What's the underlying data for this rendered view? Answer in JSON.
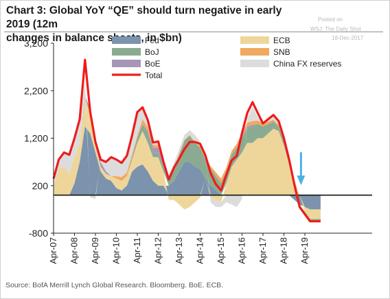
{
  "header": {
    "title_line1": "Chart 3: Global YoY “QE” should turn negative in early 2019 (12m",
    "title_line2": "changes in balance sheets, in $bn)",
    "posted": "Posted on",
    "wsj": "WSJ: The Daily Shot",
    "date": "18-Dec-2017"
  },
  "footer": {
    "source": "Source: BofA Merrill Lynch Global Research. Bloomberg. BoE. ECB."
  },
  "colors": {
    "fed": "#7b93ad",
    "boj": "#8aab91",
    "boe": "#a796b8",
    "ecb": "#eed69a",
    "snb": "#f0a95f",
    "china_fx": "#dcdcdc",
    "total": "#ee1c1c",
    "arrow": "#4cb2e6"
  },
  "chart_data": {
    "type": "area",
    "x_unit": "date (year, month)",
    "y_unit": "$bn",
    "ylim": [
      -800,
      3200
    ],
    "yticks": [
      3200,
      2200,
      1200,
      200,
      -800
    ],
    "ytick_labels": [
      "3,200",
      "2,200",
      "1,200",
      "200",
      "-800"
    ],
    "xticks": [
      "Apr-07",
      "Apr-08",
      "Apr-09",
      "Apr-10",
      "Apr-11",
      "Apr-12",
      "Apr-13",
      "Apr-14",
      "Apr-15",
      "Apr-16",
      "Apr-17",
      "Apr-18",
      "Apr-19"
    ],
    "grid": false,
    "zero_line": 0,
    "annotation": "downward arrow near Jan-2019",
    "legend": [
      {
        "key": "fed",
        "label": "Fed"
      },
      {
        "key": "ecb",
        "label": "ECB"
      },
      {
        "key": "boj",
        "label": "BoJ"
      },
      {
        "key": "snb",
        "label": "SNB"
      },
      {
        "key": "boe",
        "label": "BoE"
      },
      {
        "key": "china_fx",
        "label": "China FX reserves"
      },
      {
        "key": "total",
        "label": "Total"
      }
    ],
    "x": [
      "Apr-07",
      "Jul-07",
      "Oct-07",
      "Jan-08",
      "Apr-08",
      "Jul-08",
      "Oct-08",
      "Jan-09",
      "Apr-09",
      "Jul-09",
      "Oct-09",
      "Jan-10",
      "Apr-10",
      "Jul-10",
      "Oct-10",
      "Jan-11",
      "Apr-11",
      "Jul-11",
      "Oct-11",
      "Jan-12",
      "Apr-12",
      "Jul-12",
      "Oct-12",
      "Jan-13",
      "Apr-13",
      "Jul-13",
      "Oct-13",
      "Jan-14",
      "Apr-14",
      "Jul-14",
      "Oct-14",
      "Jan-15",
      "Apr-15",
      "Jul-15",
      "Oct-15",
      "Jan-16",
      "Apr-16",
      "Jul-16",
      "Oct-16",
      "Jan-17",
      "Apr-17",
      "Jul-17",
      "Oct-17",
      "Jan-18",
      "Apr-18",
      "Jul-18",
      "Oct-18",
      "Jan-19",
      "Apr-19",
      "Jul-19",
      "Oct-19",
      "Jan-20"
    ],
    "series": [
      {
        "key": "fed",
        "values": [
          0,
          0,
          0,
          0,
          250,
          700,
          1450,
          1300,
          900,
          500,
          350,
          300,
          150,
          100,
          200,
          500,
          600,
          650,
          500,
          300,
          200,
          200,
          200,
          300,
          500,
          700,
          700,
          600,
          550,
          350,
          200,
          100,
          0,
          0,
          0,
          0,
          0,
          0,
          0,
          0,
          0,
          0,
          0,
          0,
          0,
          0,
          -100,
          -200,
          -250,
          -300,
          -300,
          -300
        ]
      },
      {
        "key": "ecb",
        "values": [
          200,
          550,
          600,
          450,
          550,
          400,
          600,
          400,
          150,
          100,
          100,
          100,
          200,
          200,
          200,
          250,
          500,
          700,
          600,
          500,
          600,
          300,
          -100,
          -100,
          -200,
          -300,
          -250,
          -150,
          -50,
          0,
          -50,
          -100,
          -150,
          250,
          600,
          750,
          900,
          1100,
          1100,
          1200,
          1200,
          1300,
          1400,
          1350,
          1050,
          650,
          300,
          0,
          -100,
          -200,
          -200,
          -200
        ]
      },
      {
        "key": "boj",
        "values": [
          0,
          0,
          0,
          0,
          0,
          0,
          0,
          0,
          0,
          0,
          0,
          0,
          0,
          0,
          0,
          50,
          100,
          150,
          200,
          100,
          100,
          100,
          150,
          250,
          350,
          450,
          550,
          500,
          450,
          400,
          350,
          300,
          250,
          250,
          250,
          250,
          300,
          300,
          350,
          300,
          250,
          200,
          150,
          100,
          80,
          50,
          0,
          -50,
          -50,
          -50,
          -50,
          -50
        ]
      },
      {
        "key": "boe",
        "values": [
          0,
          0,
          0,
          0,
          0,
          0,
          50,
          100,
          150,
          100,
          50,
          0,
          0,
          0,
          0,
          0,
          0,
          0,
          50,
          100,
          100,
          50,
          0,
          0,
          0,
          0,
          0,
          0,
          0,
          0,
          0,
          0,
          0,
          0,
          0,
          0,
          30,
          50,
          30,
          0,
          0,
          0,
          0,
          0,
          0,
          0,
          0,
          0,
          0,
          0,
          0,
          0
        ]
      },
      {
        "key": "snb",
        "values": [
          0,
          0,
          0,
          0,
          0,
          0,
          0,
          0,
          0,
          0,
          0,
          0,
          50,
          80,
          80,
          60,
          50,
          100,
          80,
          60,
          50,
          50,
          30,
          30,
          20,
          20,
          20,
          20,
          30,
          40,
          60,
          80,
          100,
          80,
          80,
          80,
          80,
          80,
          80,
          70,
          60,
          50,
          40,
          30,
          20,
          20,
          10,
          0,
          0,
          0,
          0,
          0
        ]
      },
      {
        "key": "china_fx",
        "values": [
          150,
          200,
          300,
          400,
          400,
          500,
          300,
          -50,
          -80,
          50,
          200,
          400,
          350,
          300,
          350,
          400,
          500,
          250,
          150,
          50,
          80,
          0,
          50,
          100,
          100,
          100,
          100,
          150,
          100,
          50,
          -100,
          -150,
          -100,
          -150,
          -200,
          -250,
          -80,
          100,
          300,
          80,
          0,
          50,
          100,
          80,
          50,
          30,
          10,
          0,
          0,
          0,
          0,
          0
        ]
      },
      {
        "key": "total",
        "values": [
          350,
          750,
          900,
          850,
          1200,
          1600,
          2850,
          1750,
          1120,
          750,
          700,
          800,
          750,
          680,
          830,
          1260,
          1750,
          1850,
          1580,
          1110,
          1130,
          700,
          330,
          580,
          770,
          970,
          1120,
          1120,
          1080,
          840,
          460,
          230,
          100,
          430,
          730,
          830,
          1310,
          1730,
          1960,
          1730,
          1510,
          1600,
          1690,
          1560,
          1200,
          750,
          220,
          -250,
          -400,
          -550,
          -550,
          -550
        ]
      }
    ]
  }
}
